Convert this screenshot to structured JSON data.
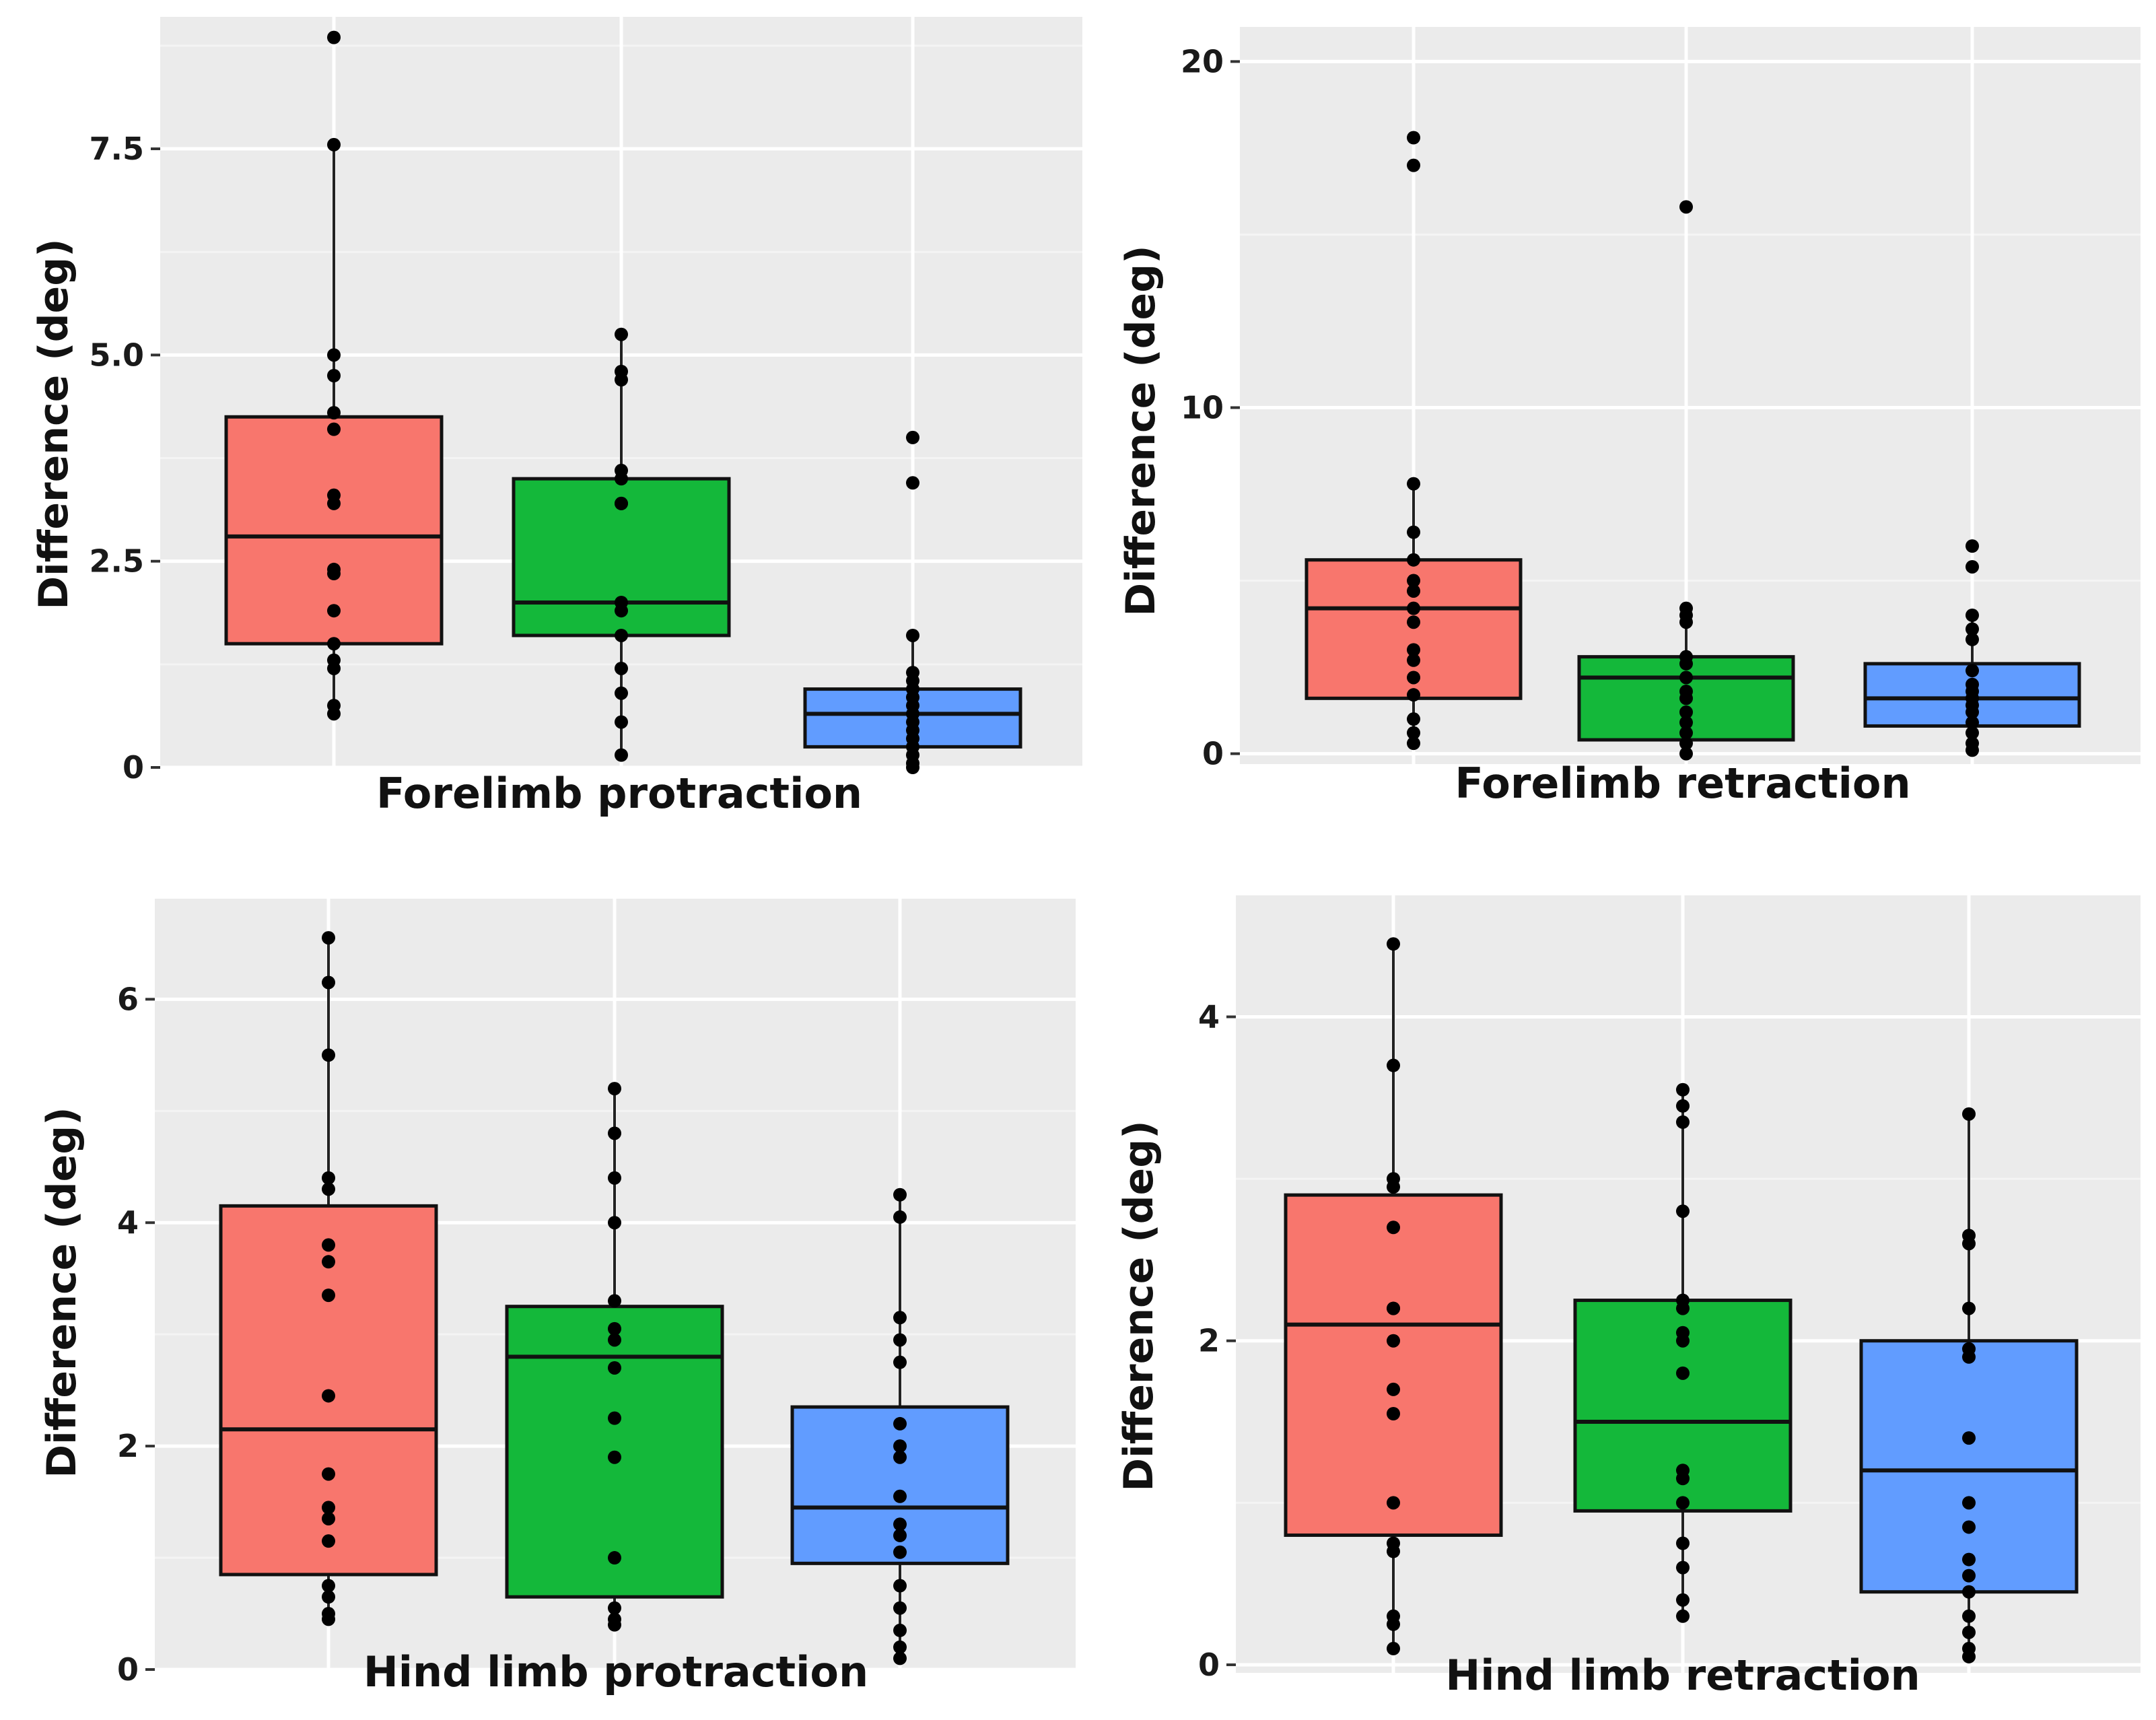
{
  "figure": {
    "panel_colors": {
      "background": "#ebebeb",
      "grid_major": "#ffffff",
      "grid_minor": "#f4f4f4"
    },
    "group_colors": [
      "#f8766d",
      "#14b83a",
      "#619cff"
    ]
  },
  "chart_data": [
    {
      "type": "box",
      "title": "",
      "xlabel": "Forelimb protraction",
      "ylabel": "Difference (deg)",
      "ylim": [
        0,
        9.1
      ],
      "yticks": [
        0,
        2.5,
        5.0,
        7.5
      ],
      "ytick_labels": [
        "0",
        "2.5",
        "5.0",
        "7.5"
      ],
      "groups": [
        {
          "color": "#f8766d",
          "q1": 1.5,
          "median": 2.8,
          "q3": 4.25,
          "whisker_low": 0.65,
          "whisker_high": 7.55,
          "points": [
            8.85,
            7.55,
            5.0,
            4.75,
            4.3,
            4.1,
            3.3,
            3.2,
            2.4,
            2.35,
            1.9,
            1.5,
            1.3,
            1.2,
            0.75,
            0.65
          ]
        },
        {
          "color": "#14b83a",
          "q1": 1.6,
          "median": 2.0,
          "q3": 3.5,
          "whisker_low": 0.15,
          "whisker_high": 5.25,
          "points": [
            5.25,
            4.8,
            4.7,
            3.6,
            3.5,
            3.2,
            3.2,
            2.0,
            1.9,
            1.6,
            1.2,
            0.9,
            0.55,
            0.15
          ]
        },
        {
          "color": "#619cff",
          "q1": 0.25,
          "median": 0.65,
          "q3": 0.95,
          "whisker_low": 0.0,
          "whisker_high": 1.6,
          "points": [
            4.0,
            3.45,
            1.6,
            1.15,
            1.05,
            0.95,
            0.85,
            0.75,
            0.65,
            0.55,
            0.45,
            0.35,
            0.25,
            0.15,
            0.05,
            0.0
          ]
        }
      ]
    },
    {
      "type": "box",
      "title": "",
      "xlabel": "Forelimb retraction",
      "ylabel": "Difference (deg)",
      "ylim": [
        -0.3,
        21.0
      ],
      "yticks": [
        0,
        10,
        20
      ],
      "ytick_labels": [
        "0",
        "10",
        "20"
      ],
      "groups": [
        {
          "color": "#f8766d",
          "q1": 1.6,
          "median": 4.2,
          "q3": 5.6,
          "whisker_low": 0.3,
          "whisker_high": 7.8,
          "points": [
            17.8,
            17.0,
            7.8,
            6.4,
            5.6,
            5.0,
            4.7,
            4.2,
            3.8,
            3.0,
            2.7,
            2.2,
            1.7,
            1.0,
            0.6,
            0.3
          ]
        },
        {
          "color": "#14b83a",
          "q1": 0.4,
          "median": 2.2,
          "q3": 2.8,
          "whisker_low": 0.0,
          "whisker_high": 4.2,
          "points": [
            15.8,
            4.2,
            4.0,
            3.8,
            2.8,
            2.6,
            2.2,
            1.8,
            1.6,
            1.2,
            0.9,
            0.6,
            0.3,
            0.0
          ]
        },
        {
          "color": "#619cff",
          "q1": 0.8,
          "median": 1.6,
          "q3": 2.6,
          "whisker_low": 0.1,
          "whisker_high": 4.0,
          "points": [
            6.0,
            5.4,
            4.0,
            3.6,
            3.3,
            2.4,
            2.0,
            1.8,
            1.6,
            1.4,
            1.2,
            0.9,
            0.6,
            0.3,
            0.1
          ]
        }
      ]
    },
    {
      "type": "box",
      "title": "",
      "xlabel": "Hind limb protraction",
      "ylabel": "Difference (deg)",
      "ylim": [
        0,
        6.9
      ],
      "yticks": [
        0,
        2,
        4,
        6
      ],
      "ytick_labels": [
        "0",
        "2",
        "4",
        "6"
      ],
      "groups": [
        {
          "color": "#f8766d",
          "q1": 0.85,
          "median": 2.15,
          "q3": 4.15,
          "whisker_low": 0.45,
          "whisker_high": 6.55,
          "points": [
            6.55,
            6.15,
            5.5,
            4.4,
            4.3,
            3.8,
            3.65,
            3.35,
            2.45,
            1.75,
            1.45,
            1.35,
            1.15,
            0.75,
            0.65,
            0.5,
            0.45
          ]
        },
        {
          "color": "#14b83a",
          "q1": 0.65,
          "median": 2.8,
          "q3": 3.25,
          "whisker_low": 0.4,
          "whisker_high": 5.2,
          "points": [
            5.2,
            4.8,
            4.4,
            4.0,
            3.3,
            3.05,
            2.95,
            2.7,
            2.25,
            1.9,
            1.0,
            0.55,
            0.45,
            0.4
          ]
        },
        {
          "color": "#619cff",
          "q1": 0.95,
          "median": 1.45,
          "q3": 2.35,
          "whisker_low": 0.1,
          "whisker_high": 4.25,
          "points": [
            4.25,
            4.05,
            3.15,
            2.95,
            2.75,
            2.2,
            2.0,
            1.9,
            1.55,
            1.3,
            1.2,
            1.05,
            0.75,
            0.55,
            0.35,
            0.2,
            0.1
          ]
        }
      ]
    },
    {
      "type": "box",
      "title": "",
      "xlabel": "Hind limb retraction",
      "ylabel": "Difference (deg)",
      "ylim": [
        -0.05,
        4.75
      ],
      "yticks": [
        0,
        2,
        4
      ],
      "ytick_labels": [
        "0",
        "2",
        "4"
      ],
      "groups": [
        {
          "color": "#f8766d",
          "q1": 0.8,
          "median": 2.1,
          "q3": 2.9,
          "whisker_low": 0.1,
          "whisker_high": 4.45,
          "points": [
            4.45,
            3.7,
            3.0,
            2.95,
            2.7,
            2.2,
            2.2,
            2.0,
            1.7,
            1.55,
            1.0,
            0.75,
            0.7,
            0.3,
            0.25,
            0.1
          ]
        },
        {
          "color": "#14b83a",
          "q1": 0.95,
          "median": 1.5,
          "q3": 2.25,
          "whisker_low": 0.3,
          "whisker_high": 3.55,
          "points": [
            3.55,
            3.45,
            3.35,
            2.8,
            2.25,
            2.2,
            2.05,
            2.0,
            1.8,
            1.2,
            1.15,
            1.0,
            0.75,
            0.6,
            0.4,
            0.3
          ]
        },
        {
          "color": "#619cff",
          "q1": 0.45,
          "median": 1.2,
          "q3": 2.0,
          "whisker_low": 0.05,
          "whisker_high": 3.4,
          "points": [
            3.4,
            2.65,
            2.6,
            2.2,
            1.95,
            1.9,
            1.4,
            1.0,
            0.85,
            0.65,
            0.55,
            0.45,
            0.3,
            0.2,
            0.1,
            0.05
          ]
        }
      ]
    }
  ]
}
